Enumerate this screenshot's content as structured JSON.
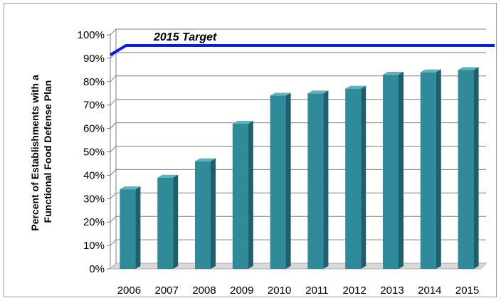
{
  "chart_data": {
    "type": "bar",
    "title": "",
    "ylabel_lines": [
      "Percent of Establishments with a",
      "Functional Food Defense Plan"
    ],
    "xlabel": "",
    "categories": [
      "2006",
      "2007",
      "2008",
      "2009",
      "2010",
      "2011",
      "2012",
      "2013",
      "2014",
      "2015"
    ],
    "values": [
      34,
      39,
      46,
      62,
      74,
      75,
      77,
      83,
      84,
      85
    ],
    "y_ticks": [
      "0%",
      "10%",
      "20%",
      "30%",
      "40%",
      "50%",
      "60%",
      "70%",
      "80%",
      "90%",
      "100%"
    ],
    "ylim": [
      0,
      100
    ],
    "grid": true,
    "target": {
      "label": "2015 Target",
      "start_value": 89,
      "value": 93,
      "color": "#0b1fd6"
    },
    "colors": {
      "bar_front": "#2f8a9a",
      "bar_side": "#1d5f6b",
      "bar_top": "#5bb3c2",
      "grid": "#7f7f7f",
      "floor": "#d9d9d9"
    }
  }
}
